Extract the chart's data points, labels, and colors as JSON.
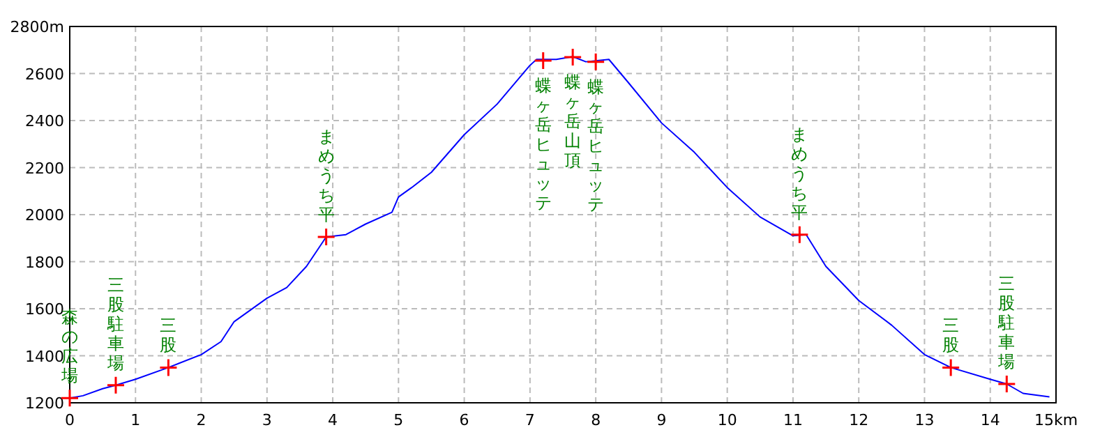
{
  "chart_data": {
    "type": "line",
    "xlim": [
      0,
      15
    ],
    "ylim": [
      1200,
      2800
    ],
    "xticks": [
      0,
      1,
      2,
      3,
      4,
      5,
      6,
      7,
      8,
      9,
      10,
      11,
      12,
      13,
      14,
      {
        "value": 15,
        "label": "15km"
      }
    ],
    "yticks": [
      1200,
      1400,
      1600,
      1800,
      2000,
      2200,
      2400,
      2600,
      {
        "value": 2800,
        "label": "2800m"
      }
    ],
    "grid": true,
    "series": [
      {
        "color": "#0000ff",
        "x": [
          0,
          0.2,
          0.5,
          0.7,
          1,
          1.5,
          2,
          2.3,
          2.5,
          3,
          3.3,
          3.6,
          3.9,
          4.2,
          4.5,
          4.9,
          5,
          5.2,
          5.5,
          6,
          6.5,
          7,
          7.1,
          7.4,
          7.65,
          7.85,
          8.2,
          8.5,
          9,
          9.5,
          10,
          10.5,
          11,
          11.2,
          11.5,
          12,
          12.5,
          13,
          13.4,
          14,
          14.25,
          14.5,
          14.9
        ],
        "values": [
          1220,
          1230,
          1260,
          1275,
          1300,
          1350,
          1405,
          1460,
          1545,
          1645,
          1690,
          1780,
          1905,
          1915,
          1960,
          2010,
          2075,
          2115,
          2180,
          2340,
          2470,
          2635,
          2660,
          2660,
          2672,
          2650,
          2660,
          2560,
          2390,
          2265,
          2115,
          1990,
          1910,
          1915,
          1780,
          1635,
          1530,
          1405,
          1350,
          1300,
          1280,
          1240,
          1225
        ]
      },
      {
        "type": "scatter",
        "color": "#ff0000",
        "marker": "cross",
        "x": [
          0,
          0.7,
          1.5,
          3.9,
          7.2,
          7.65,
          8.0,
          11.1,
          13.4,
          14.25
        ],
        "values": [
          1220,
          1275,
          1350,
          1905,
          2655,
          2670,
          2650,
          1915,
          1350,
          1280
        ]
      }
    ],
    "annotations": [
      {
        "text": "森の広場",
        "x": 0,
        "y": 1220
      },
      {
        "text": "三股駐車場",
        "x": 0.7,
        "y": 1275
      },
      {
        "text": "三股",
        "x": 1.5,
        "y": 1350
      },
      {
        "text": "まめうち平",
        "x": 3.9,
        "y": 1905
      },
      {
        "text": "蝶ヶ岳ヒュッテ",
        "x": 7.2,
        "y": 2655
      },
      {
        "text": "蝶ヶ岳山頂",
        "x": 7.65,
        "y": 2670
      },
      {
        "text": "蝶ヶ岳ヒュッテ",
        "x": 8.0,
        "y": 2650
      },
      {
        "text": "まめうち平",
        "x": 11.1,
        "y": 1915
      },
      {
        "text": "三股",
        "x": 13.4,
        "y": 1350
      },
      {
        "text": "三股駐車場",
        "x": 14.25,
        "y": 1280
      }
    ]
  }
}
